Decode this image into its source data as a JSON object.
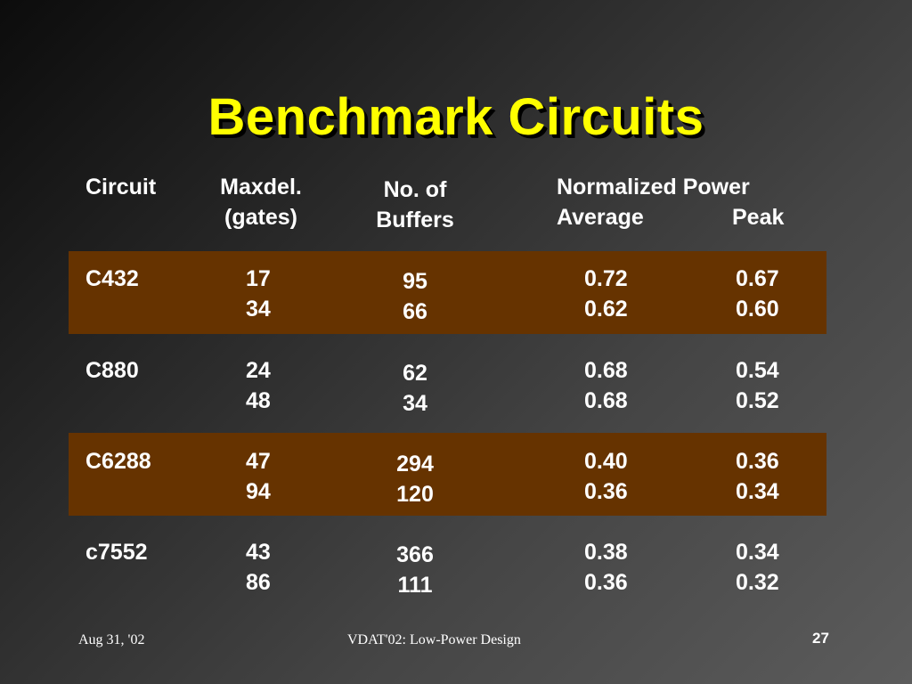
{
  "slide": {
    "title": "Benchmark Circuits"
  },
  "table": {
    "headers": {
      "circuit": "Circuit",
      "maxdel_line1": "Maxdel.",
      "maxdel_line2": "(gates)",
      "buffers_line1": "No. of",
      "buffers_line2": "Buffers",
      "power_line1": "Normalized Power",
      "power_average": "Average",
      "power_peak": "Peak"
    },
    "rows": [
      {
        "circuit": "C432",
        "maxdel": [
          "17",
          "34"
        ],
        "buffers": [
          "95",
          "66"
        ],
        "average": [
          "0.72",
          "0.62"
        ],
        "peak": [
          "0.67",
          "0.60"
        ],
        "highlight": true
      },
      {
        "circuit": "C880",
        "maxdel": [
          "24",
          "48"
        ],
        "buffers": [
          "62",
          "34"
        ],
        "average": [
          "0.68",
          "0.68"
        ],
        "peak": [
          "0.54",
          "0.52"
        ],
        "highlight": false
      },
      {
        "circuit": "C6288",
        "maxdel": [
          "47",
          "94"
        ],
        "buffers": [
          "294",
          "120"
        ],
        "average": [
          "0.40",
          "0.36"
        ],
        "peak": [
          "0.36",
          "0.34"
        ],
        "highlight": true
      },
      {
        "circuit": "c7552",
        "maxdel": [
          "43",
          "86"
        ],
        "buffers": [
          "366",
          "111"
        ],
        "average": [
          "0.38",
          "0.36"
        ],
        "peak": [
          "0.34",
          "0.32"
        ],
        "highlight": false
      }
    ],
    "band_color": "#663300"
  },
  "footer": {
    "date": "Aug 31, '02",
    "center_text": "VDAT'02: Low-Power Design",
    "page_number": "27"
  },
  "colors": {
    "title": "#ffff00",
    "text": "#ffffff"
  }
}
